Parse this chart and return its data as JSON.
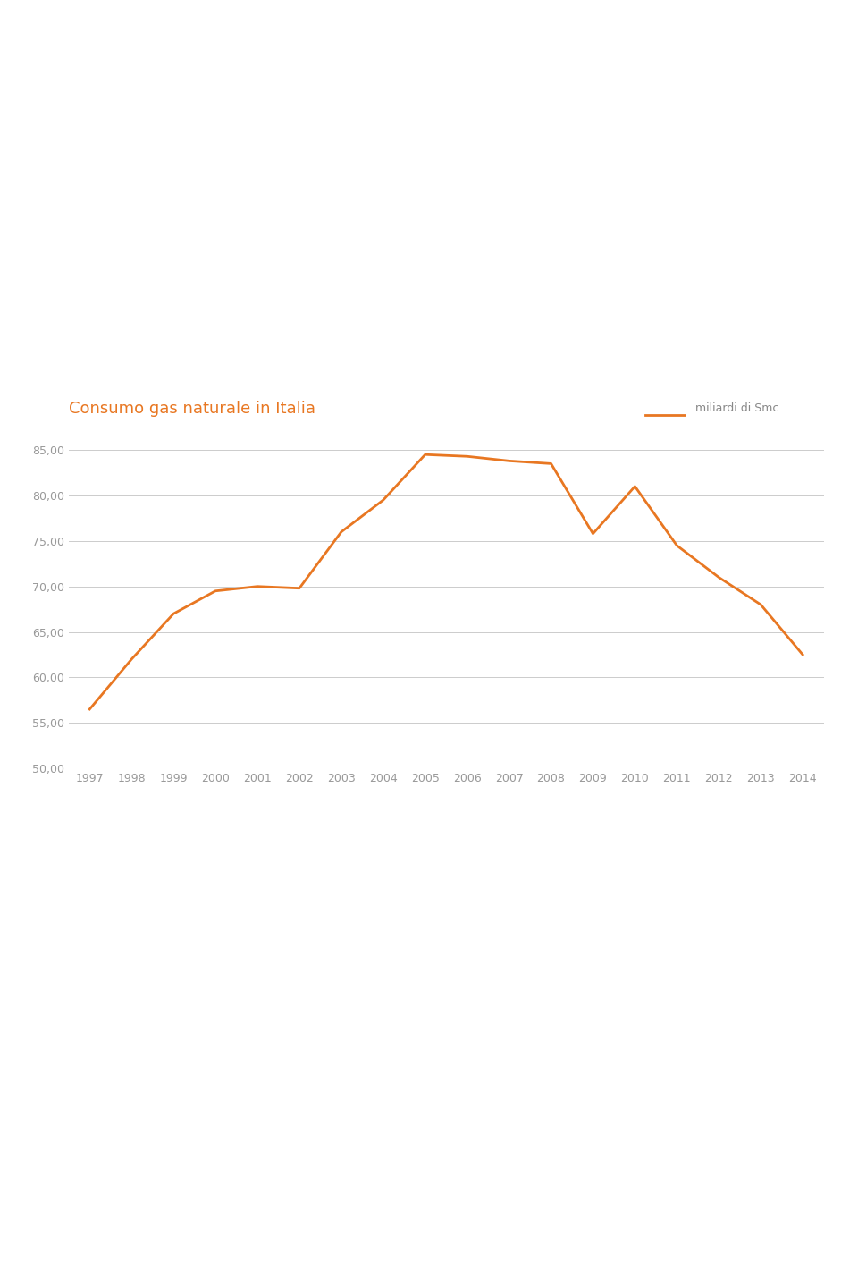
{
  "title": "Consumo gas naturale in Italia",
  "legend_label": "miliardi di Smc",
  "years": [
    1997,
    1998,
    1999,
    2000,
    2001,
    2002,
    2003,
    2004,
    2005,
    2006,
    2007,
    2008,
    2009,
    2010,
    2011,
    2012,
    2013,
    2014
  ],
  "values": [
    56.5,
    62.0,
    67.0,
    69.5,
    70.0,
    69.8,
    76.0,
    79.5,
    84.5,
    84.3,
    83.8,
    83.5,
    75.8,
    81.0,
    74.5,
    71.0,
    68.0,
    62.5
  ],
  "line_color": "#E87722",
  "line_width": 2.0,
  "title_color": "#E87722",
  "title_fontsize": 13,
  "axis_label_color": "#999999",
  "axis_tick_color": "#999999",
  "grid_color": "#cccccc",
  "background_color": "#ffffff",
  "ylim": [
    50.0,
    87.0
  ],
  "yticks": [
    50.0,
    55.0,
    60.0,
    65.0,
    70.0,
    75.0,
    80.0,
    85.0
  ],
  "tick_fontsize": 9,
  "legend_fontsize": 9
}
